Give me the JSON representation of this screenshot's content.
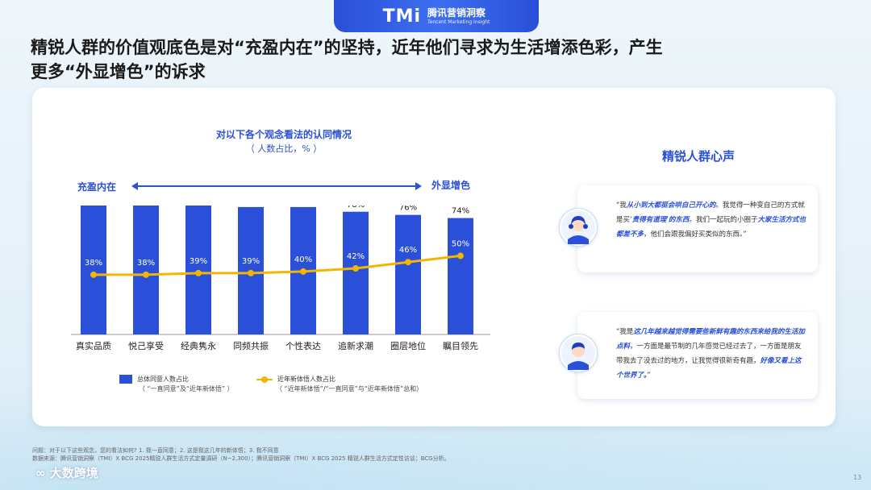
{
  "brand": {
    "logo": "TMi",
    "name_cn": "腾讯营销洞察",
    "name_en": "Tencent Marketing Insight"
  },
  "headline": {
    "line1": "精锐人群的价值观底色是对“充盈内在”的坚持，近年他们寻求为生活增添色彩，产生",
    "line2": "更多“外显增色”的诉求"
  },
  "chart_header": {
    "title": "对以下各个观念看法的认同情况",
    "subtitle": "（ 人数占比，% ）",
    "left_word": "充盈内在",
    "right_word": "外显增色"
  },
  "chart_data": {
    "type": "bar",
    "categories": [
      "真实品质",
      "悦己享受",
      "经典隽永",
      "同频共振",
      "个性表达",
      "追新求潮",
      "圈层地位",
      "瞩目领先"
    ],
    "series": [
      {
        "name": "总体同意人数占比",
        "kind": "bar",
        "color": "#2a4fd8",
        "values": [
          86,
          85,
          82,
          81,
          81,
          78,
          76,
          74
        ]
      },
      {
        "name": "近年新体悟人数占比",
        "kind": "line",
        "color": "#f2b600",
        "values": [
          38,
          38,
          39,
          39,
          40,
          42,
          46,
          50
        ]
      }
    ],
    "ylim": [
      0,
      100
    ],
    "value_suffix": "%"
  },
  "legend": {
    "bar_label": "总体同意人数占比",
    "bar_note": "（ “一直同意”及“近年新体悟” ）",
    "line_label": "近年新体悟人数占比",
    "line_note": "（ “近年新体悟”/“一直同意”与“近年新体悟”总和）"
  },
  "voices": {
    "title": "精锐人群心声",
    "quote1": {
      "p1": "“我",
      "h1": "从小到大都挺会哄自己开心的",
      "p2": "。我觉得一种变自己的方式就是买‘",
      "h2": "贵得有道理",
      "p3": "’",
      "h3": "的东西",
      "p4": "。我们一起玩的小圈子",
      "h4": "大家生活方式也都差不多",
      "p5": "，他们会跟我偏好买类似的东西。”"
    },
    "quote2": {
      "p1": "“我是",
      "h1": "这几年越来越觉得需要些新鲜有趣的东西来给我的生活加点料",
      "p2": "，一方面是最节制的几年感觉已经过去了，一方面是朋友带我去了没去过的地方，让我觉得很新奇有趣，",
      "h2": "好像又看上这个世界了。",
      "p3": "”"
    }
  },
  "footnotes": {
    "question": "问题：对于以下这些观念，您的看法如何? 1. 我一直同意；2. 这是我这几年的新体悟；3. 我不同意",
    "source": "数据来源：腾讯营销洞察（TMI）X BCG 2025精锐人群生活方式定量调研（N~2,300）；腾讯营销洞察（TMI）X BCG 2025 精锐人群生活方式定性访谈；BCG分析。"
  },
  "watermark": "大数跨境",
  "page_number": "13"
}
